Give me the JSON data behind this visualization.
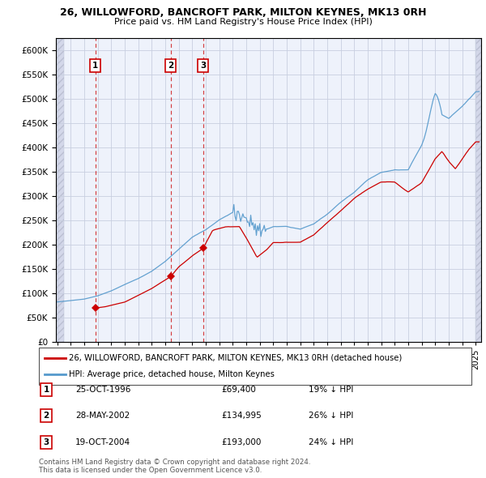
{
  "title1": "26, WILLOWFORD, BANCROFT PARK, MILTON KEYNES, MK13 0RH",
  "title2": "Price paid vs. HM Land Registry's House Price Index (HPI)",
  "legend_label1": "26, WILLOWFORD, BANCROFT PARK, MILTON KEYNES, MK13 0RH (detached house)",
  "legend_label2": "HPI: Average price, detached house, Milton Keynes",
  "sales": [
    {
      "date_num": 1996.82,
      "price": 69400,
      "label": "1"
    },
    {
      "date_num": 2002.41,
      "price": 134995,
      "label": "2"
    },
    {
      "date_num": 2004.8,
      "price": 193000,
      "label": "3"
    }
  ],
  "table_rows": [
    {
      "num": "1",
      "date": "25-OCT-1996",
      "price": "£69,400",
      "pct": "19% ↓ HPI"
    },
    {
      "num": "2",
      "date": "28-MAY-2002",
      "price": "£134,995",
      "pct": "26% ↓ HPI"
    },
    {
      "num": "3",
      "date": "19-OCT-2004",
      "price": "£193,000",
      "pct": "24% ↓ HPI"
    }
  ],
  "footer": "Contains HM Land Registry data © Crown copyright and database right 2024.\nThis data is licensed under the Open Government Licence v3.0.",
  "sale_color": "#cc0000",
  "hpi_color": "#5599cc",
  "vline_color": "#cc0000",
  "box_color": "#cc0000",
  "ylim": [
    0,
    625000
  ],
  "xlim_start": 1993.9,
  "xlim_end": 2025.4,
  "plot_bg": "#eef2fb",
  "grid_color": "#c8cfe0"
}
